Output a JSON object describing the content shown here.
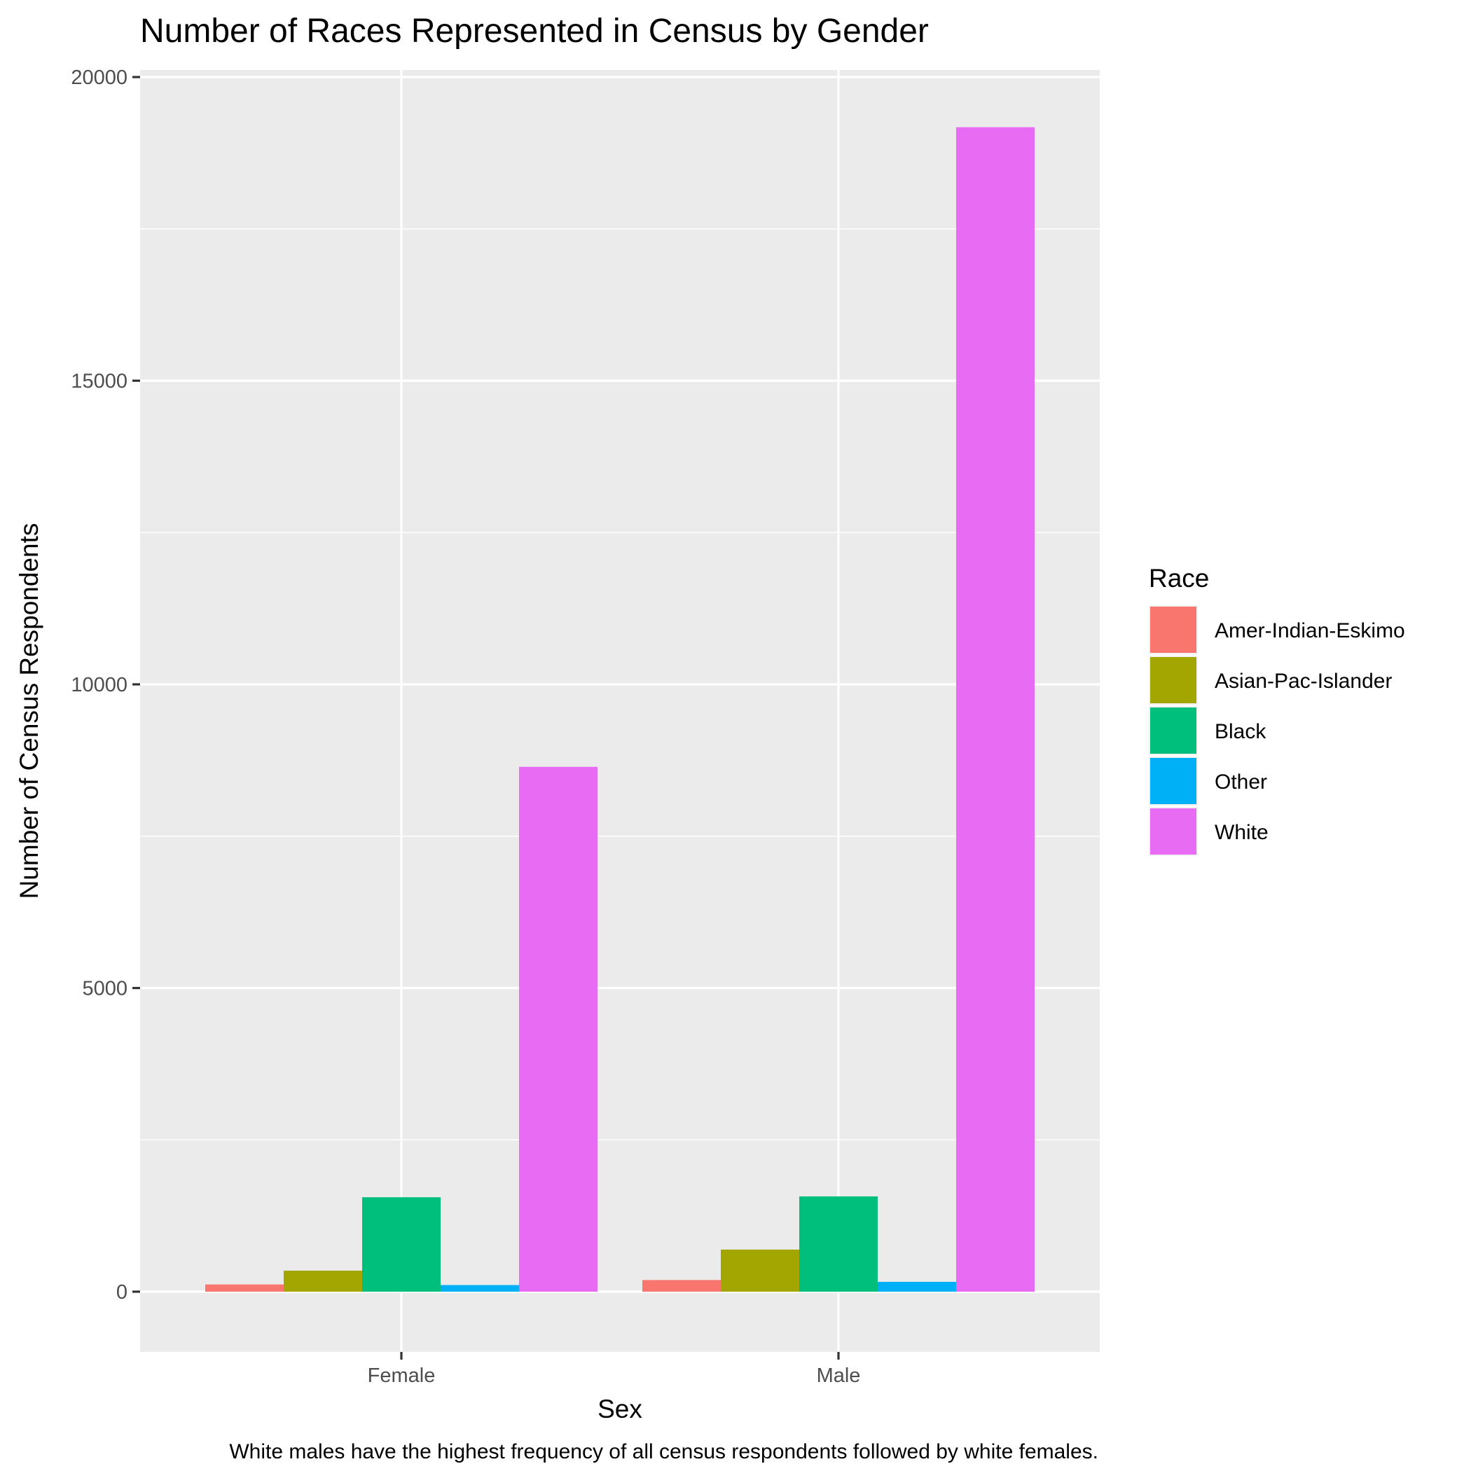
{
  "chart_data": {
    "type": "bar",
    "title": "Number of Races Represented in Census by Gender",
    "xlabel": "Sex",
    "ylabel": "Number of Census Respondents",
    "caption": "White males have the highest frequency of all census respondents followed by white females.",
    "categories": [
      "Female",
      "Male"
    ],
    "ylim": [
      -1000,
      20000
    ],
    "y_ticks": [
      0,
      5000,
      10000,
      15000,
      20000
    ],
    "y_tick_labels": [
      "0",
      "5000",
      "10000",
      "15000",
      "20000"
    ],
    "grid": true,
    "legend": {
      "title": "Race",
      "position": "right"
    },
    "series": [
      {
        "name": "Amer-Indian-Eskimo",
        "color": "#F8766D",
        "values": [
          119,
          192
        ]
      },
      {
        "name": "Asian-Pac-Islander",
        "color": "#A3A500",
        "values": [
          346,
          693
        ]
      },
      {
        "name": "Black",
        "color": "#00BF7D",
        "values": [
          1555,
          1569
        ]
      },
      {
        "name": "Other",
        "color": "#00B0F6",
        "values": [
          109,
          162
        ]
      },
      {
        "name": "White",
        "color": "#E76BF3",
        "values": [
          8642,
          19174
        ]
      }
    ]
  }
}
